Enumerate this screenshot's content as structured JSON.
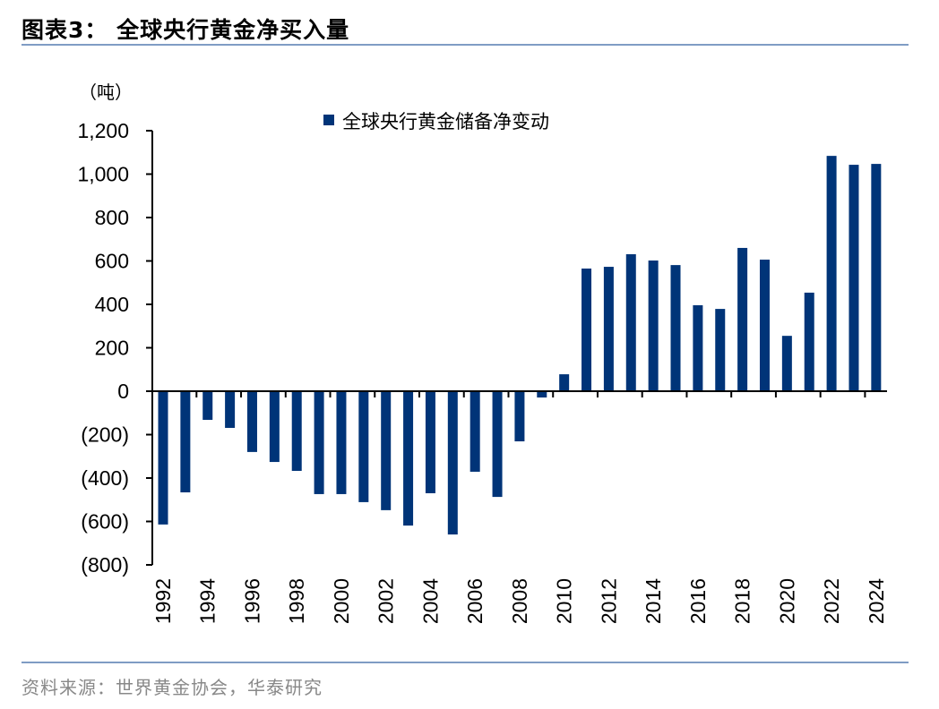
{
  "title": "图表3：  全球央行黄金净买入量",
  "source": "资料来源：世界黄金协会，华泰研究",
  "chart_data": {
    "type": "bar",
    "title": "",
    "ylabel": "（吨）",
    "xlabel": "",
    "ylim": [
      -800,
      1200
    ],
    "yticks": [
      -800,
      -600,
      -400,
      -200,
      0,
      200,
      400,
      600,
      800,
      1000,
      1200
    ],
    "ytick_labels": [
      "(800)",
      "(600)",
      "(400)",
      "(200)",
      "0",
      "200",
      "400",
      "600",
      "800",
      "1,000",
      "1,200"
    ],
    "legend_placement": "top-center",
    "grid": false,
    "bar_color": "#003478",
    "categories": [
      1992,
      1993,
      1994,
      1995,
      1996,
      1997,
      1998,
      1999,
      2000,
      2001,
      2002,
      2003,
      2004,
      2005,
      2006,
      2007,
      2008,
      2009,
      2010,
      2011,
      2012,
      2013,
      2014,
      2015,
      2016,
      2017,
      2018,
      2019,
      2020,
      2021,
      2022,
      2023,
      2024
    ],
    "xtick_labels": [
      "1992",
      "1994",
      "1996",
      "1998",
      "2000",
      "2002",
      "2004",
      "2006",
      "2008",
      "2010",
      "2012",
      "2014",
      "2016",
      "2018",
      "2020",
      "2022",
      "2024"
    ],
    "series": [
      {
        "name": "全球央行黄金储备净变动",
        "values": [
          -614,
          -466,
          -132,
          -169,
          -280,
          -326,
          -367,
          -474,
          -474,
          -511,
          -548,
          -619,
          -470,
          -660,
          -371,
          -487,
          -231,
          -29,
          78,
          565,
          573,
          631,
          602,
          581,
          396,
          379,
          660,
          606,
          255,
          454,
          1084,
          1043,
          1047
        ]
      }
    ]
  }
}
